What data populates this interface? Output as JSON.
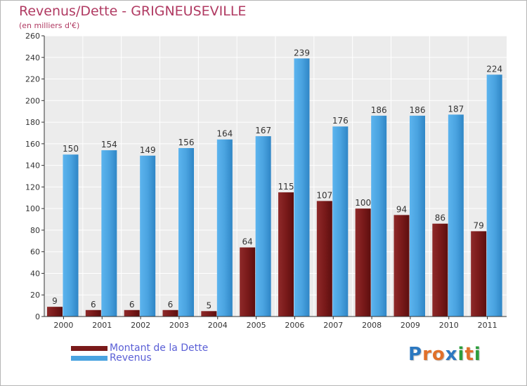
{
  "header": {
    "title": "Revenus/Dette - GRIGNEUSEVILLE",
    "subtitle": "(en milliers d'€)"
  },
  "legend": [
    {
      "label": "Montant de la Dette",
      "color": "#7a1a1a"
    },
    {
      "label": "Revenus",
      "color": "#4aa3e0"
    }
  ],
  "logo": {
    "text": "Proxiti",
    "colors": [
      "#2c78c0",
      "#e0702a",
      "#e0702a",
      "#2c78c0",
      "#2c9e3c",
      "#e0702a",
      "#2c9e3c"
    ]
  },
  "chart_data": {
    "type": "bar",
    "categories": [
      "2000",
      "2001",
      "2002",
      "2003",
      "2004",
      "2005",
      "2006",
      "2007",
      "2008",
      "2009",
      "2010",
      "2011"
    ],
    "series": [
      {
        "name": "Montant de la Dette",
        "values": [
          9,
          6,
          6,
          6,
          5,
          64,
          115,
          107,
          100,
          94,
          86,
          79
        ],
        "color": "#7a1a1a"
      },
      {
        "name": "Revenus",
        "values": [
          150,
          154,
          149,
          156,
          164,
          167,
          239,
          176,
          186,
          186,
          187,
          224
        ],
        "color": "#4aa3e0"
      }
    ],
    "ylim": [
      0,
      260
    ],
    "yticks": [
      0,
      20,
      40,
      60,
      80,
      100,
      120,
      140,
      160,
      180,
      200,
      220,
      240,
      260
    ],
    "grid": true,
    "legend_position": "bottom-left",
    "data_labels": true
  }
}
